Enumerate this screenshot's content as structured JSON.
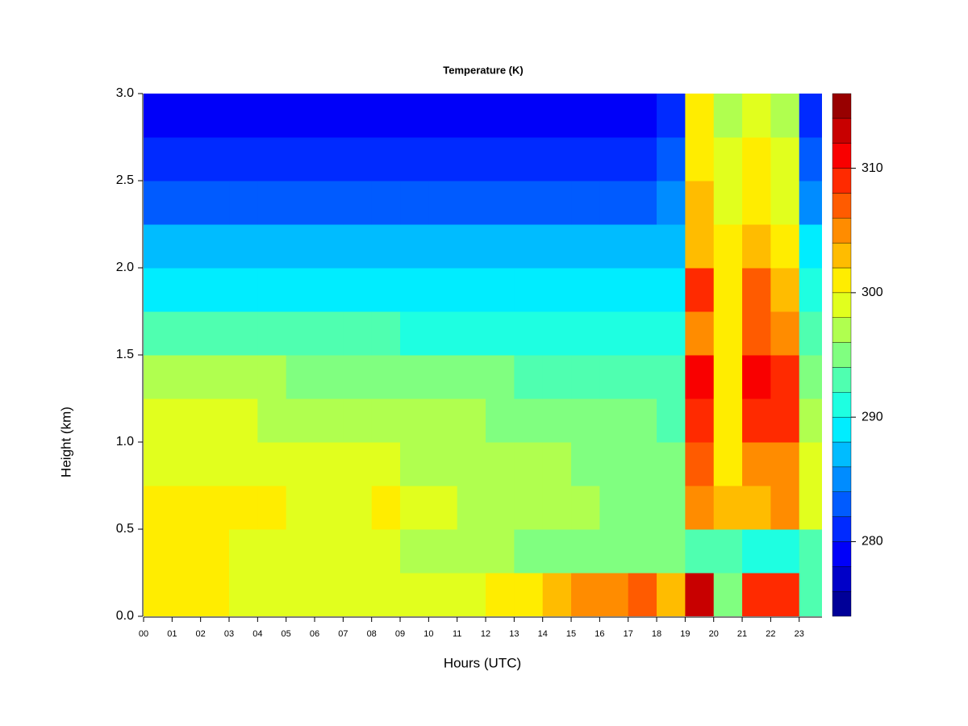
{
  "chart_data": {
    "type": "heatmap",
    "title": "Temperature (K)",
    "x_label": "Hours (UTC)",
    "y_label": "Height (km)",
    "colormap": "jet",
    "xlim": [
      0,
      23.8
    ],
    "ylim": [
      0,
      3
    ],
    "xticks": [
      {
        "value": 0,
        "label": "00"
      },
      {
        "value": 1,
        "label": "01"
      },
      {
        "value": 2,
        "label": "02"
      },
      {
        "value": 3,
        "label": "03"
      },
      {
        "value": 4,
        "label": "04"
      },
      {
        "value": 5,
        "label": "05"
      },
      {
        "value": 6,
        "label": "06"
      },
      {
        "value": 7,
        "label": "07"
      },
      {
        "value": 8,
        "label": "08"
      },
      {
        "value": 9,
        "label": "09"
      },
      {
        "value": 10,
        "label": "10"
      },
      {
        "value": 11,
        "label": "11"
      },
      {
        "value": 12,
        "label": "12"
      },
      {
        "value": 13,
        "label": "13"
      },
      {
        "value": 14,
        "label": "14"
      },
      {
        "value": 15,
        "label": "15"
      },
      {
        "value": 16,
        "label": "16"
      },
      {
        "value": 17,
        "label": "17"
      },
      {
        "value": 18,
        "label": "18"
      },
      {
        "value": 19,
        "label": "19"
      },
      {
        "value": 20,
        "label": "20"
      },
      {
        "value": 21,
        "label": "21"
      },
      {
        "value": 22,
        "label": "22"
      },
      {
        "value": 23,
        "label": "23"
      }
    ],
    "yticks": [
      {
        "value": 0,
        "label": "0.0"
      },
      {
        "value": 0.5,
        "label": "0.5"
      },
      {
        "value": 1,
        "label": "1.0"
      },
      {
        "value": 1.5,
        "label": "1.5"
      },
      {
        "value": 2,
        "label": "2.0"
      },
      {
        "value": 2.5,
        "label": "2.5"
      },
      {
        "value": 3,
        "label": "3.0"
      }
    ],
    "levels": [
      274,
      276,
      278,
      280,
      282,
      284,
      286,
      288,
      290,
      292,
      294,
      296,
      298,
      300,
      302,
      304,
      306,
      308,
      310,
      312,
      314,
      316
    ],
    "zticks": [
      280,
      290,
      300,
      310
    ],
    "x": [
      0.5,
      1.5,
      2.5,
      3.5,
      4.5,
      5.5,
      6.5,
      7.5,
      8.5,
      9.5,
      10.5,
      11.5,
      12.5,
      13.5,
      14.5,
      15.5,
      16.5,
      17.5,
      18.5,
      19.5,
      20.5,
      21.5,
      22.5,
      23.5
    ],
    "y": [
      0.125,
      0.375,
      0.625,
      0.875,
      1.125,
      1.375,
      1.625,
      1.875,
      2.125,
      2.375,
      2.625,
      2.875
    ],
    "z": [
      [
        301,
        300,
        300,
        299,
        299,
        299,
        299,
        299,
        299,
        298,
        298,
        299,
        300,
        301,
        303,
        304,
        305,
        306,
        303,
        312,
        295,
        309,
        308,
        293
      ],
      [
        301,
        300,
        300,
        299,
        299,
        299,
        298,
        298,
        298,
        297,
        297,
        296,
        296,
        295,
        295,
        295,
        295,
        295,
        294,
        292,
        292,
        291,
        291,
        292
      ],
      [
        301,
        300,
        300,
        300,
        300,
        299,
        299,
        299,
        300,
        299,
        298,
        297,
        297,
        296,
        296,
        296,
        295,
        295,
        294,
        305,
        302,
        302,
        304,
        299
      ],
      [
        299,
        299,
        299,
        299,
        298,
        298,
        298,
        298,
        298,
        297,
        297,
        297,
        296,
        296,
        296,
        295,
        295,
        295,
        294,
        306,
        300,
        305,
        305,
        298
      ],
      [
        298,
        298,
        298,
        298,
        297,
        297,
        297,
        297,
        297,
        296,
        296,
        296,
        295,
        295,
        295,
        294,
        294,
        294,
        293,
        309,
        300,
        309,
        308,
        296
      ],
      [
        296,
        296,
        296,
        296,
        296,
        295,
        295,
        295,
        295,
        294,
        294,
        294,
        294,
        293,
        293,
        293,
        293,
        293,
        292,
        310,
        300,
        310,
        309,
        294
      ],
      [
        293,
        293,
        293,
        292,
        292,
        292,
        292,
        292,
        292,
        291,
        291,
        291,
        291,
        291,
        291,
        291,
        291,
        291,
        291,
        305,
        300,
        306,
        304,
        292
      ],
      [
        289,
        289,
        289,
        289,
        289,
        289,
        289,
        289,
        289,
        289,
        289,
        289,
        289,
        289,
        289,
        289,
        289,
        289,
        289,
        308,
        301,
        306,
        303,
        290
      ],
      [
        286,
        286,
        286,
        286,
        286,
        286,
        286,
        286,
        286,
        286,
        286,
        286,
        286,
        286,
        286,
        286,
        286,
        286,
        287,
        303,
        300,
        303,
        301,
        288
      ],
      [
        283,
        283,
        283,
        283,
        283,
        283,
        283,
        283,
        283,
        283,
        283,
        283,
        283,
        283,
        283,
        283,
        283,
        283,
        284,
        302,
        299,
        301,
        299,
        285
      ],
      [
        280,
        280,
        281,
        281,
        281,
        281,
        281,
        281,
        281,
        281,
        281,
        281,
        281,
        281,
        281,
        281,
        281,
        281,
        282,
        301,
        298,
        300,
        298,
        283
      ],
      [
        278,
        278,
        278,
        278,
        278,
        278,
        278,
        278,
        278,
        278,
        278,
        279,
        279,
        279,
        279,
        279,
        279,
        279,
        280,
        300,
        297,
        299,
        296,
        281
      ]
    ]
  }
}
